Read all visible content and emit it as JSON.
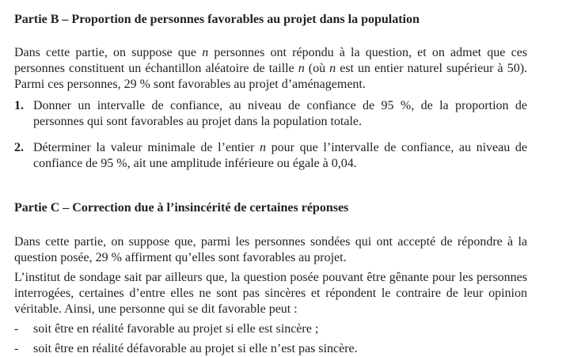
{
  "partB": {
    "heading": "Partie B – Proportion de personnes favorables au projet dans la population",
    "intro": [
      [
        {
          "t": "Dans cette partie, on suppose que "
        },
        {
          "t": "n",
          "i": true
        },
        {
          "t": " personnes ont répondu à la question, et on admet que ces"
        }
      ],
      [
        {
          "t": "personnes constituent un échantillon aléatoire de taille "
        },
        {
          "t": "n",
          "i": true
        },
        {
          "t": " (où "
        },
        {
          "t": "n",
          "i": true
        },
        {
          "t": " est un entier naturel supérieur à 50)."
        }
      ],
      [
        {
          "t": "Parmi ces personnes, 29 % sont favorables au projet d’aménagement."
        }
      ]
    ],
    "questions": [
      {
        "num": "1.",
        "lines": [
          [
            {
              "t": "Donner un intervalle de confiance, au niveau de confiance de 95 %, de la proportion de"
            }
          ],
          [
            {
              "t": "personnes qui sont favorables au projet dans la population totale."
            }
          ]
        ]
      },
      {
        "num": "2.",
        "lines": [
          [
            {
              "t": "Déterminer la valeur minimale de l’entier "
            },
            {
              "t": "n",
              "i": true
            },
            {
              "t": " pour que l’intervalle de confiance, au niveau de"
            }
          ],
          [
            {
              "t": "confiance de 95 %, ait une amplitude inférieure ou égale à 0,04."
            }
          ]
        ]
      }
    ]
  },
  "partC": {
    "heading": "Partie C – Correction due à l’insincérité de certaines réponses",
    "para1": [
      [
        {
          "t": "Dans cette partie, on suppose que, parmi les personnes sondées qui ont accepté de répondre à la"
        }
      ],
      [
        {
          "t": "question posée, 29 % affirment qu’elles sont favorables au projet."
        }
      ]
    ],
    "para2": [
      [
        {
          "t": "L’institut de sondage sait par ailleurs que, la question posée pouvant être gênante pour les personnes"
        }
      ],
      [
        {
          "t": "interrogées, certaines d’entre elles ne sont pas sincères et répondent le contraire de leur opinion"
        }
      ],
      [
        {
          "t": "véritable. Ainsi, une personne qui se dit favorable peut :"
        }
      ]
    ],
    "bullets": [
      {
        "dash": "-",
        "text": "soit être en réalité favorable au projet si elle est sincère ;"
      },
      {
        "dash": "-",
        "text": "soit être en réalité défavorable au projet si elle n’est pas sincère."
      }
    ]
  }
}
